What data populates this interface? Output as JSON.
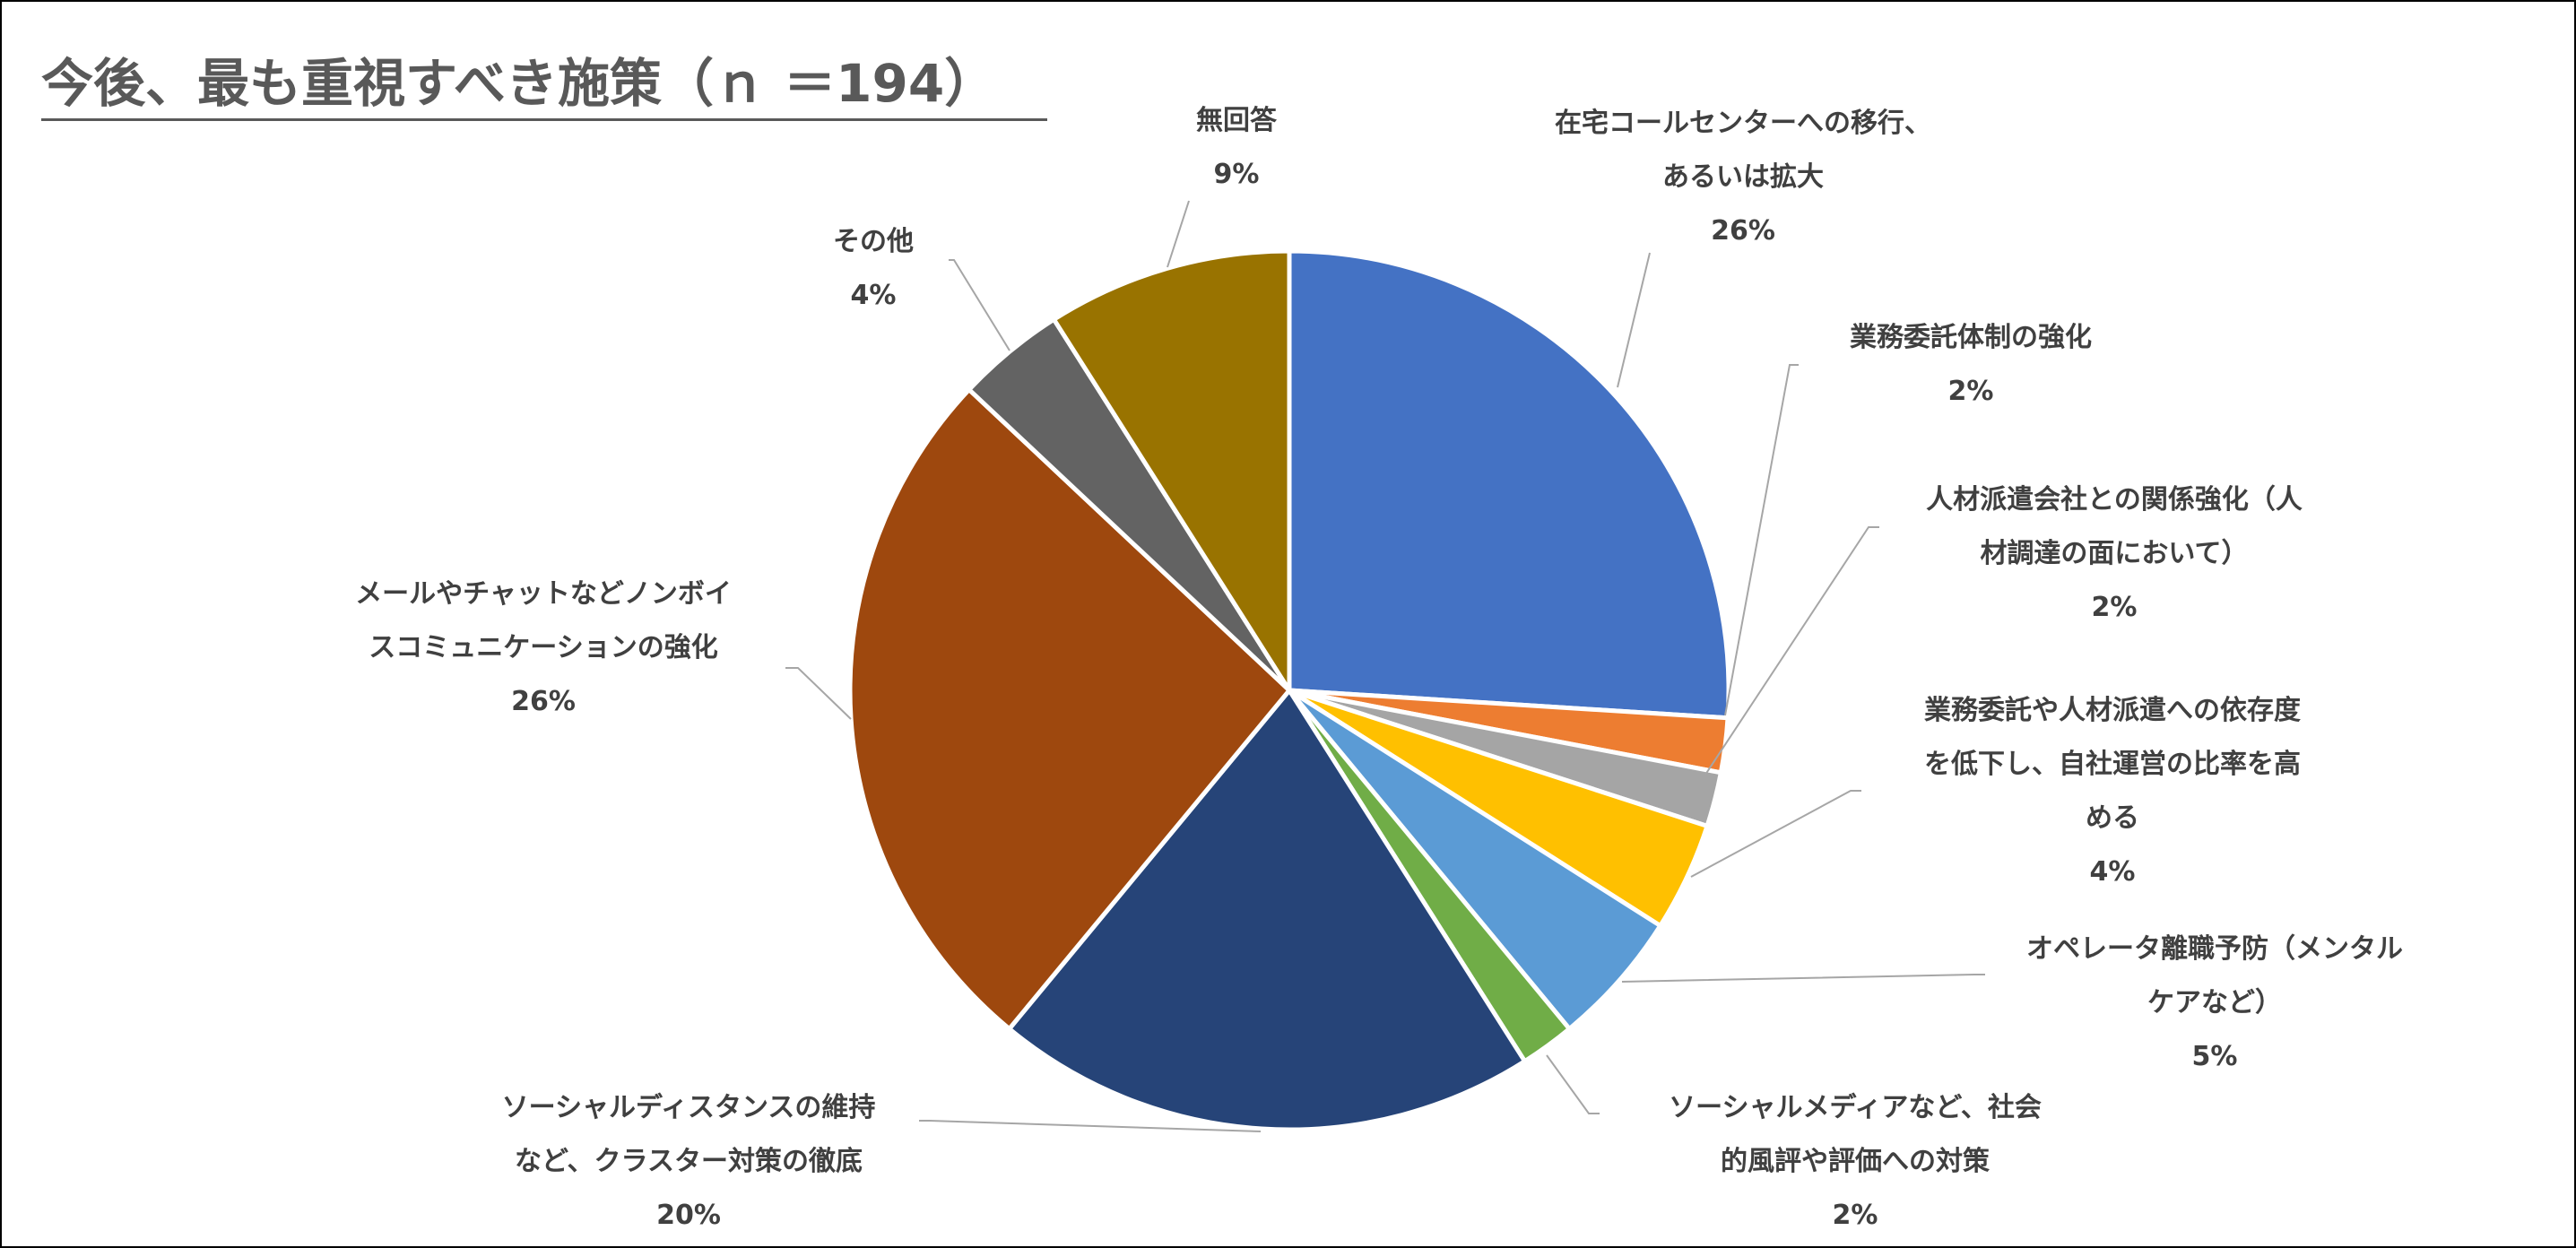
{
  "chart_data": {
    "type": "pie",
    "title": "今後、最も重視すべき施策（ｎ ＝194）",
    "slices": [
      {
        "label": [
          "在宅コールセンターへの移行、",
          "あるいは拡大"
        ],
        "percent_label": "26%",
        "value": 26,
        "color": "#4472C4"
      },
      {
        "label": [
          "業務委託体制の強化"
        ],
        "percent_label": "2%",
        "value": 2,
        "color": "#ED7D31"
      },
      {
        "label": [
          "人材派遣会社との関係強化（人",
          "材調達の面において）"
        ],
        "percent_label": "2%",
        "value": 2,
        "color": "#A5A5A5"
      },
      {
        "label": [
          "業務委託や人材派遣への依存度",
          "を低下し、自社運営の比率を高",
          "める"
        ],
        "percent_label": "4%",
        "value": 4,
        "color": "#FFC000"
      },
      {
        "label": [
          "オペレータ離職予防（メンタル",
          "ケアなど）"
        ],
        "percent_label": "5%",
        "value": 5,
        "color": "#5B9BD5"
      },
      {
        "label": [
          "ソーシャルメディアなど、社会",
          "的風評や評価への対策"
        ],
        "percent_label": "2%",
        "value": 2,
        "color": "#70AD47"
      },
      {
        "label": [
          "ソーシャルディスタンスの維持",
          "など、クラスター対策の徹底"
        ],
        "percent_label": "20%",
        "value": 20,
        "color": "#264478"
      },
      {
        "label": [
          "メールやチャットなどノンボイ",
          "スコミュニケーションの強化"
        ],
        "percent_label": "26%",
        "value": 26,
        "color": "#9E480E"
      },
      {
        "label": [
          "その他"
        ],
        "percent_label": "4%",
        "value": 4,
        "color": "#636363"
      },
      {
        "label": [
          "無回答"
        ],
        "percent_label": "9%",
        "value": 9,
        "color": "#997300"
      }
    ],
    "legend": "none"
  }
}
